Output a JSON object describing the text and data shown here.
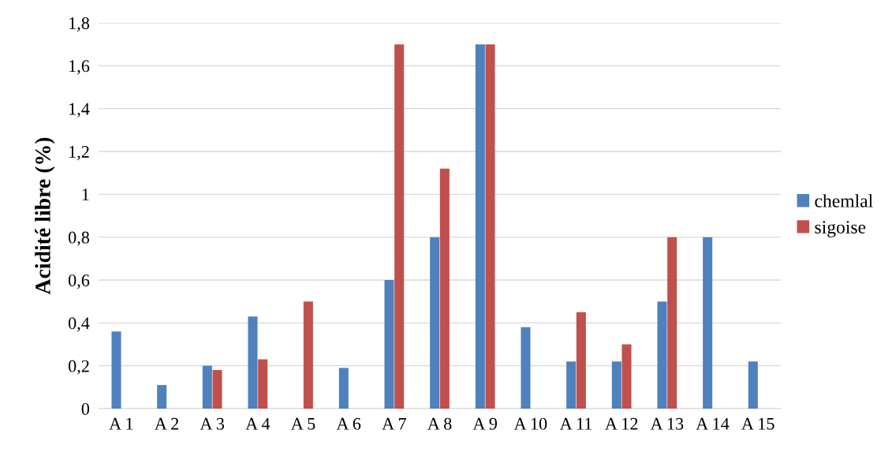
{
  "chart_data": {
    "type": "bar",
    "ylabel": "Acidité libre (%)",
    "categories": [
      "A 1",
      "A 2",
      "A 3",
      "A 4",
      "A 5",
      "A 6",
      "A 7",
      "A 8",
      "A 9",
      "A 10",
      "A 11",
      "A 12",
      "A 13",
      "A 14",
      "A 15"
    ],
    "series": [
      {
        "name": "chemlal",
        "color": "#4f81bd",
        "values": [
          0.36,
          0.11,
          0.2,
          0.43,
          null,
          0.19,
          0.6,
          0.8,
          1.7,
          0.38,
          0.22,
          0.22,
          0.5,
          0.8,
          0.22
        ]
      },
      {
        "name": "sigoise",
        "color": "#c0504d",
        "values": [
          null,
          null,
          0.18,
          0.23,
          0.5,
          null,
          1.7,
          1.12,
          1.7,
          null,
          0.45,
          0.3,
          0.8,
          null,
          null
        ]
      }
    ],
    "ylim": [
      0,
      1.8
    ],
    "yticks": [
      0,
      {
        "value": 0.2,
        "label": "0,2"
      },
      {
        "value": 0.4,
        "label": "0,4"
      },
      {
        "value": 0.6,
        "label": "0,6"
      },
      {
        "value": 0.8,
        "label": "0,8"
      },
      1,
      {
        "value": 1.2,
        "label": "1,2"
      },
      {
        "value": 1.4,
        "label": "1,4"
      },
      {
        "value": 1.6,
        "label": "1,6"
      },
      {
        "value": 1.8,
        "label": "1,8"
      }
    ],
    "grid": "y",
    "legend": "right"
  }
}
